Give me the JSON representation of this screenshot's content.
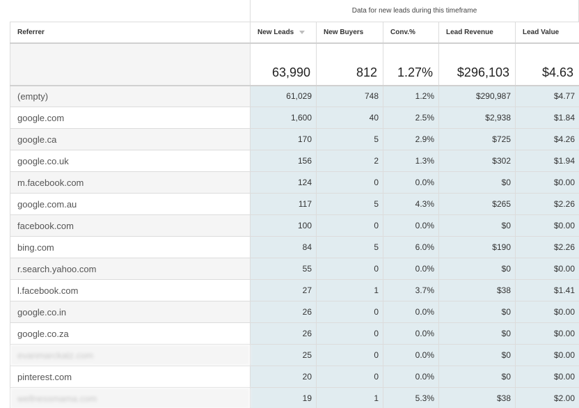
{
  "group_header": "Data for new leads during this timeframe",
  "columns": {
    "referrer": "Referrer",
    "new_leads": "New Leads",
    "new_buyers": "New Buyers",
    "conv": "Conv.%",
    "lead_revenue": "Lead Revenue",
    "lead_value": "Lead Value"
  },
  "totals": {
    "new_leads": "63,990",
    "new_buyers": "812",
    "conv": "1.27%",
    "lead_revenue": "$296,103",
    "lead_value": "$4.63"
  },
  "rows": [
    {
      "referrer": "(empty)",
      "new_leads": "61,029",
      "new_buyers": "748",
      "conv": "1.2%",
      "lead_revenue": "$290,987",
      "lead_value": "$4.77"
    },
    {
      "referrer": "google.com",
      "new_leads": "1,600",
      "new_buyers": "40",
      "conv": "2.5%",
      "lead_revenue": "$2,938",
      "lead_value": "$1.84"
    },
    {
      "referrer": "google.ca",
      "new_leads": "170",
      "new_buyers": "5",
      "conv": "2.9%",
      "lead_revenue": "$725",
      "lead_value": "$4.26"
    },
    {
      "referrer": "google.co.uk",
      "new_leads": "156",
      "new_buyers": "2",
      "conv": "1.3%",
      "lead_revenue": "$302",
      "lead_value": "$1.94"
    },
    {
      "referrer": "m.facebook.com",
      "new_leads": "124",
      "new_buyers": "0",
      "conv": "0.0%",
      "lead_revenue": "$0",
      "lead_value": "$0.00"
    },
    {
      "referrer": "google.com.au",
      "new_leads": "117",
      "new_buyers": "5",
      "conv": "4.3%",
      "lead_revenue": "$265",
      "lead_value": "$2.26"
    },
    {
      "referrer": "facebook.com",
      "new_leads": "100",
      "new_buyers": "0",
      "conv": "0.0%",
      "lead_revenue": "$0",
      "lead_value": "$0.00"
    },
    {
      "referrer": "bing.com",
      "new_leads": "84",
      "new_buyers": "5",
      "conv": "6.0%",
      "lead_revenue": "$190",
      "lead_value": "$2.26"
    },
    {
      "referrer": "r.search.yahoo.com",
      "new_leads": "55",
      "new_buyers": "0",
      "conv": "0.0%",
      "lead_revenue": "$0",
      "lead_value": "$0.00"
    },
    {
      "referrer": "l.facebook.com",
      "new_leads": "27",
      "new_buyers": "1",
      "conv": "3.7%",
      "lead_revenue": "$38",
      "lead_value": "$1.41"
    },
    {
      "referrer": "google.co.in",
      "new_leads": "26",
      "new_buyers": "0",
      "conv": "0.0%",
      "lead_revenue": "$0",
      "lead_value": "$0.00"
    },
    {
      "referrer": "google.co.za",
      "new_leads": "26",
      "new_buyers": "0",
      "conv": "0.0%",
      "lead_revenue": "$0",
      "lead_value": "$0.00"
    },
    {
      "referrer": "evanmarckatz.com",
      "new_leads": "25",
      "new_buyers": "0",
      "conv": "0.0%",
      "lead_revenue": "$0",
      "lead_value": "$0.00",
      "blurred": true
    },
    {
      "referrer": "pinterest.com",
      "new_leads": "20",
      "new_buyers": "0",
      "conv": "0.0%",
      "lead_revenue": "$0",
      "lead_value": "$0.00"
    },
    {
      "referrer": "wellnessmama.com",
      "new_leads": "19",
      "new_buyers": "1",
      "conv": "5.3%",
      "lead_revenue": "$38",
      "lead_value": "$2.00",
      "blurred": true
    }
  ]
}
